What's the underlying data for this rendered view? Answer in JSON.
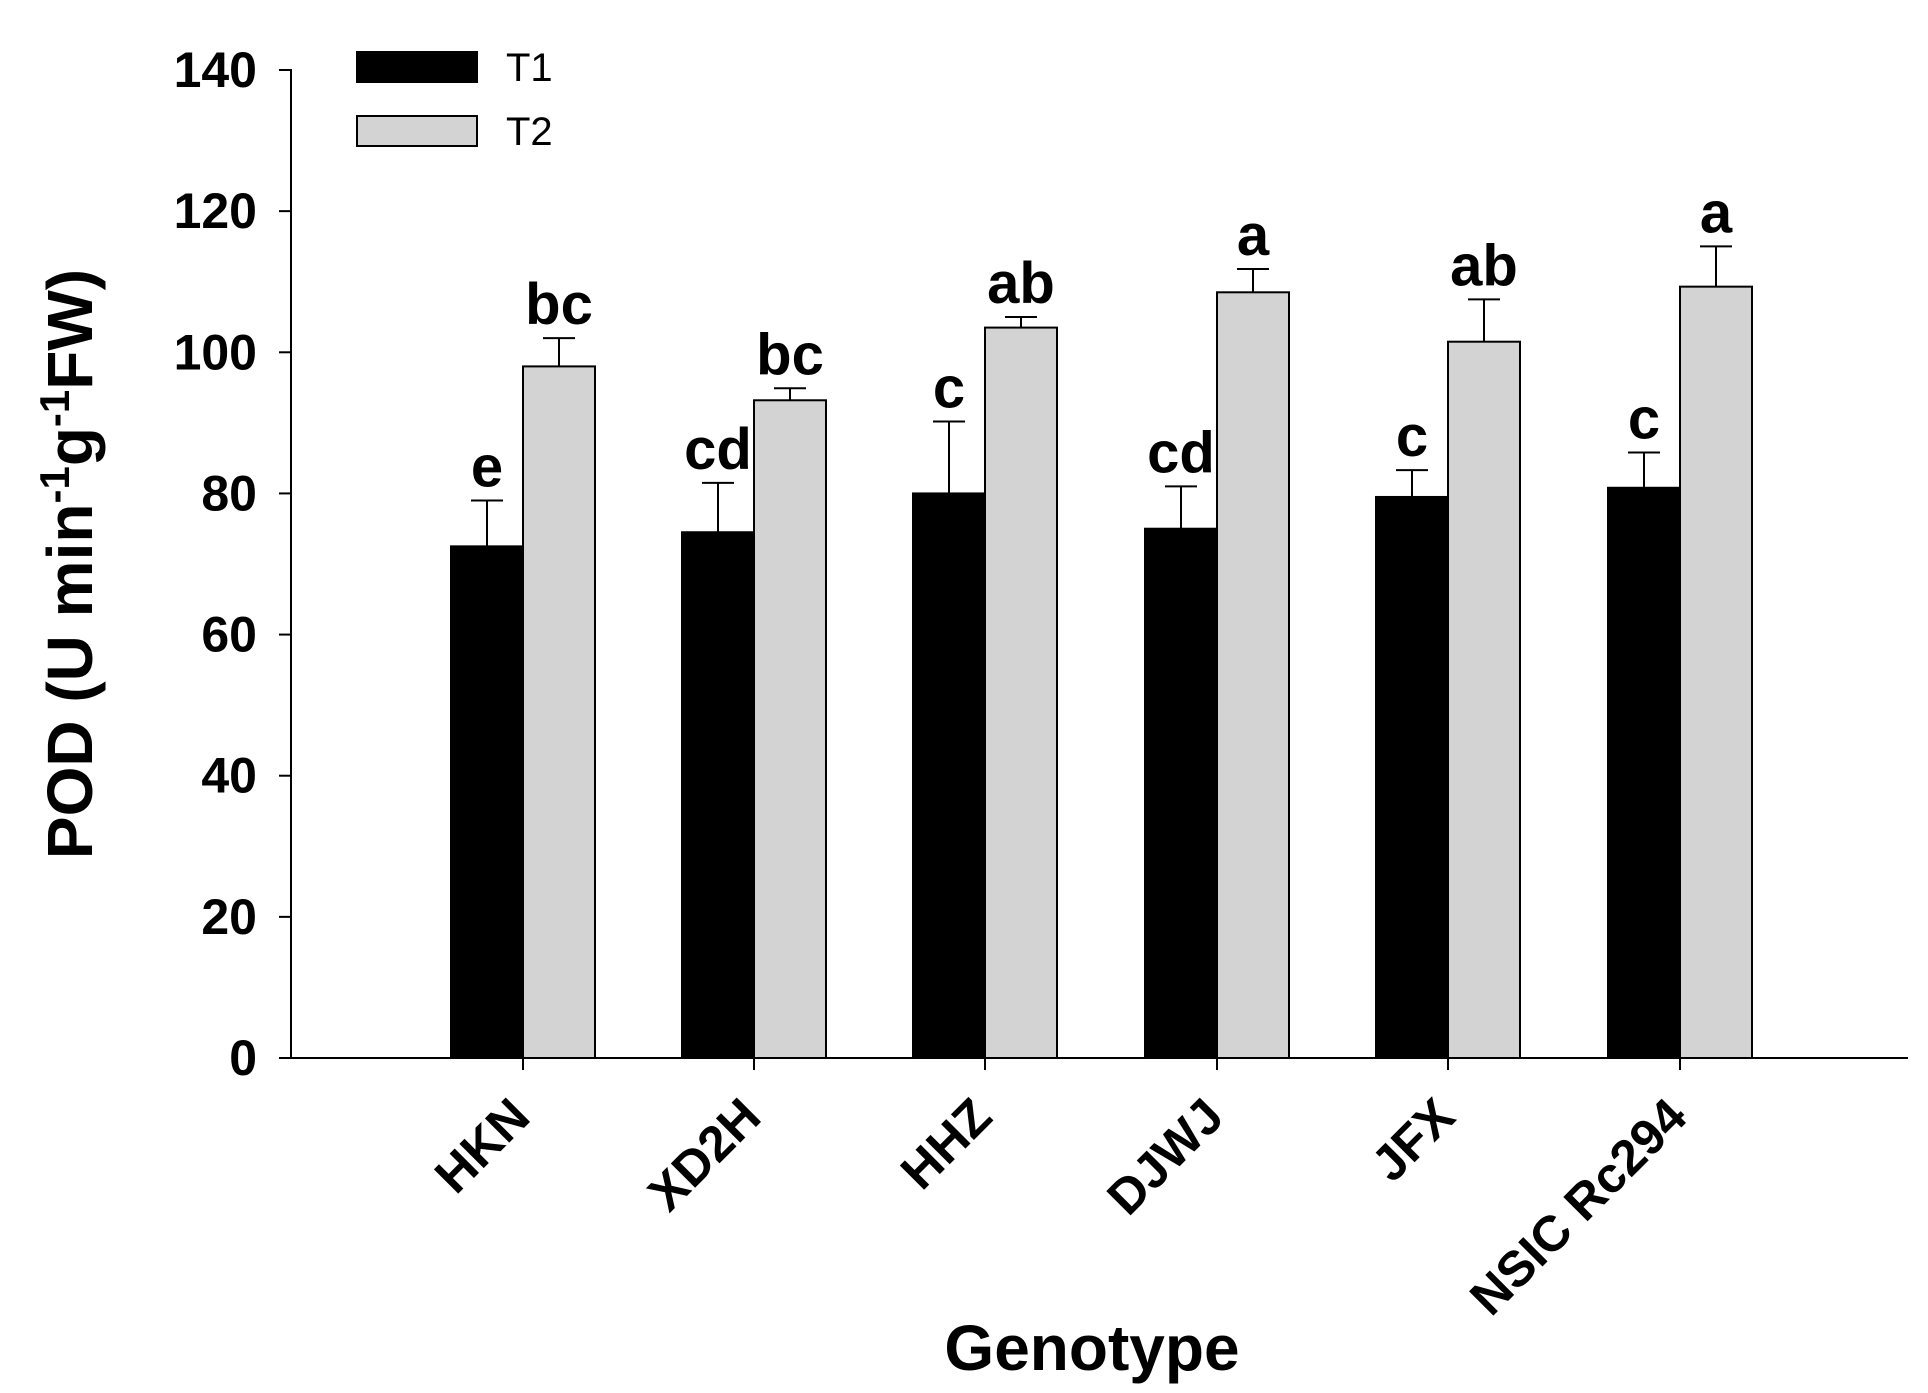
{
  "chart_data": {
    "type": "bar",
    "categories": [
      "HKN",
      "XD2H",
      "HHZ",
      "DJWJ",
      "JFX",
      "NSIC Rc294"
    ],
    "series": [
      {
        "name": "T1",
        "color": "#000000",
        "values": [
          72.5,
          74.5,
          80.0,
          75.0,
          79.5,
          80.8
        ],
        "errors": [
          6.5,
          7.0,
          10.2,
          6.0,
          3.8,
          5.0
        ],
        "letters": [
          "e",
          "cd",
          "c",
          "cd",
          "c",
          "c"
        ]
      },
      {
        "name": "T2",
        "color": "#d3d3d3",
        "values": [
          98.0,
          93.2,
          103.5,
          108.5,
          101.5,
          109.3
        ],
        "errors": [
          4.0,
          1.7,
          1.5,
          3.3,
          6.0,
          5.7
        ],
        "letters": [
          "bc",
          "bc",
          "ab",
          "a",
          "ab",
          "a"
        ]
      }
    ],
    "ylim": [
      0,
      140
    ],
    "yticks": [
      "0",
      "20",
      "40",
      "60",
      "80",
      "100",
      "120",
      "140"
    ],
    "xlabel": "Genotype",
    "ylabel": {
      "parts": [
        {
          "text": "POD (U min",
          "sup": false
        },
        {
          "text": "-1",
          "sup": true
        },
        {
          "text": "g",
          "sup": false
        },
        {
          "text": "-1",
          "sup": true
        },
        {
          "text": "FW)",
          "sup": false
        }
      ]
    },
    "legend_position": "top-left",
    "grid": false
  }
}
